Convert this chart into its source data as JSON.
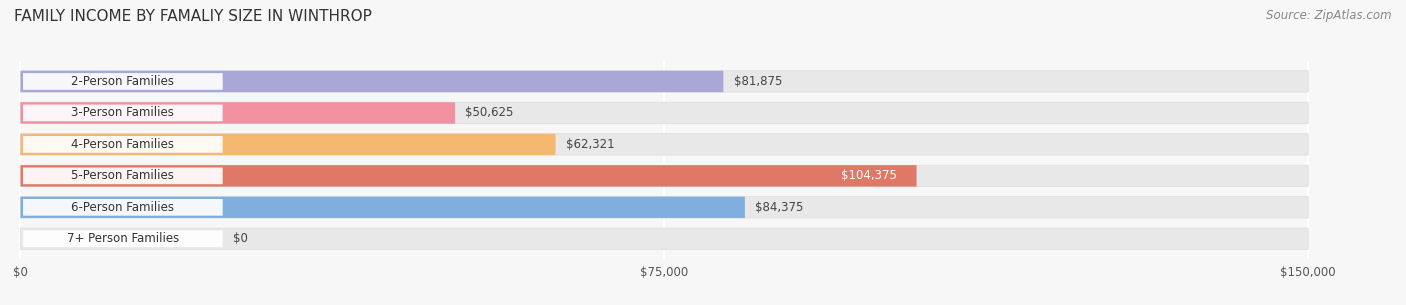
{
  "title": "FAMILY INCOME BY FAMALIY SIZE IN WINTHROP",
  "source": "Source: ZipAtlas.com",
  "categories": [
    "2-Person Families",
    "3-Person Families",
    "4-Person Families",
    "5-Person Families",
    "6-Person Families",
    "7+ Person Families"
  ],
  "values": [
    81875,
    50625,
    62321,
    104375,
    84375,
    0
  ],
  "labels": [
    "$81,875",
    "$50,625",
    "$62,321",
    "$104,375",
    "$84,375",
    "$0"
  ],
  "bar_colors": [
    "#a8a8d8",
    "#f090a0",
    "#f5b870",
    "#e07868",
    "#80aede",
    "#c8b8d8"
  ],
  "label_bg_colors": [
    "#a8a8d8",
    "#f090a0",
    "#f5b870",
    "#e07868",
    "#80aede",
    "#c8b8d8"
  ],
  "label_text_color_5person": "#ffffff",
  "xmax": 150000,
  "xticks": [
    0,
    75000,
    150000
  ],
  "xticklabels": [
    "$0",
    "$75,000",
    "$150,000"
  ],
  "background_color": "#f7f7f7",
  "bar_bg_color": "#e8e8e8",
  "title_fontsize": 11,
  "source_fontsize": 8.5,
  "value_fontsize": 8.5,
  "category_fontsize": 8.5,
  "bar_gap": 0.28,
  "bar_height": 0.68
}
